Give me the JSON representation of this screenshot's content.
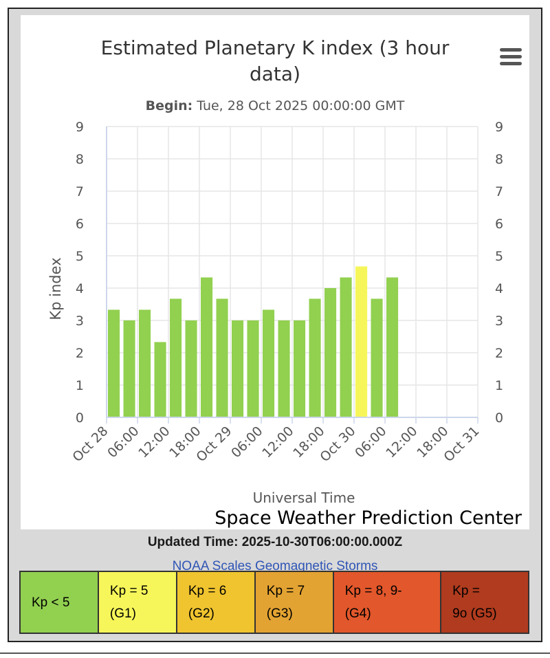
{
  "chart_data": {
    "type": "bar",
    "title": "Estimated Planetary K index (3 hour data)",
    "title_lines": [
      "Estimated Planetary K index (3 hour",
      "data)"
    ],
    "subtitle_label": "Begin:",
    "subtitle_value": "Tue, 28 Oct 2025 00:00:00 GMT",
    "ylabel": "Kp index",
    "xlabel": "Universal Time",
    "credit": "Space Weather Prediction Center",
    "ylim": [
      0,
      9
    ],
    "yticks": [
      "0",
      "1",
      "2",
      "3",
      "4",
      "5",
      "6",
      "7",
      "8",
      "9"
    ],
    "xticks": [
      "Oct 28",
      "06:00",
      "12:00",
      "18:00",
      "Oct 29",
      "06:00",
      "12:00",
      "18:00",
      "Oct 30",
      "06:00",
      "12:00",
      "18:00",
      "Oct 31"
    ],
    "xlim_hours": [
      0,
      72
    ],
    "bar_hours": [
      0,
      3,
      6,
      9,
      12,
      15,
      18,
      21,
      24,
      27,
      30,
      33,
      36,
      39,
      42,
      45,
      48,
      51,
      54
    ],
    "values": [
      3.33,
      3.0,
      3.33,
      2.33,
      3.67,
      3.0,
      4.33,
      3.67,
      3.0,
      3.0,
      3.33,
      3.0,
      3.0,
      3.67,
      4.0,
      4.33,
      4.67,
      3.67,
      4.33
    ],
    "grid": true,
    "colors": {
      "below5": "#92d050",
      "kp5": "#f6f65a",
      "kp6": "#ffc800",
      "axis_line": "#ccd6eb",
      "grid": "#e6e6e6"
    }
  },
  "menu_icon": "hamburger-menu-icon",
  "footer": {
    "updated": "Updated Time: 2025-10-30T06:00:00.000Z",
    "scales_title": "NOAA Scales Geomagnetic Storms"
  },
  "legend": [
    {
      "line1": "Kp < 5",
      "line2": "",
      "color": "#92d050"
    },
    {
      "line1": "Kp = 5",
      "line2": "(G1)",
      "color": "#f6f65a"
    },
    {
      "line1": "Kp = 6",
      "line2": "(G2)",
      "color": "#f0c42f"
    },
    {
      "line1": "Kp = 7",
      "line2": "(G3)",
      "color": "#e3a332"
    },
    {
      "line1": "Kp = 8, 9-",
      "line2": "(G4)",
      "color": "#e2572b"
    },
    {
      "line1": "Kp =",
      "line2": "9o (G5)",
      "color": "#b03b1e"
    }
  ]
}
